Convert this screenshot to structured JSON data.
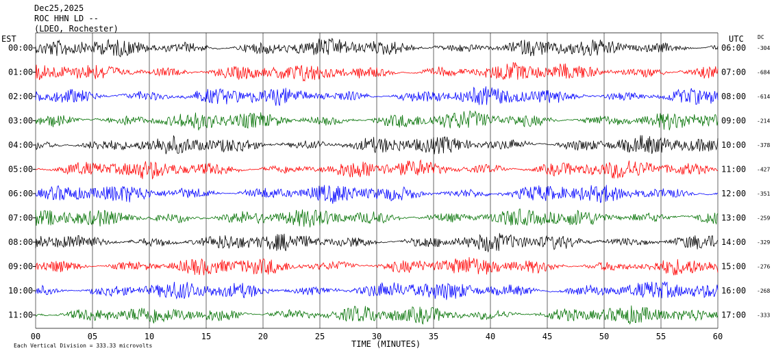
{
  "header": {
    "date": "Dec25,2025",
    "station": "ROC HHN LD --",
    "network": "(LDEO, Rochester)"
  },
  "chart_data": {
    "type": "line",
    "title": "",
    "left_axis_label": "EST",
    "right_axis_label": "UTC",
    "dc_label": "DC",
    "xlabel": "TIME (MINUTES)",
    "x_ticks": [
      "00",
      "05",
      "10",
      "15",
      "20",
      "25",
      "30",
      "35",
      "40",
      "45",
      "50",
      "55",
      "60"
    ],
    "xlim": [
      0,
      60
    ],
    "footer_note": "Each Vertical Division = 333.33 microvolts",
    "grid": "vertical lines every 5 minutes",
    "rows": [
      {
        "est": "00:00",
        "utc": "06:00",
        "dc": "-304",
        "color": "#000000"
      },
      {
        "est": "01:00",
        "utc": "07:00",
        "dc": "-684",
        "color": "#ff0000"
      },
      {
        "est": "02:00",
        "utc": "08:00",
        "dc": "-614",
        "color": "#0000ff"
      },
      {
        "est": "03:00",
        "utc": "09:00",
        "dc": "-214",
        "color": "#007000"
      },
      {
        "est": "04:00",
        "utc": "10:00",
        "dc": "-378",
        "color": "#000000"
      },
      {
        "est": "05:00",
        "utc": "11:00",
        "dc": "-427",
        "color": "#ff0000"
      },
      {
        "est": "06:00",
        "utc": "12:00",
        "dc": "-351",
        "color": "#0000ff"
      },
      {
        "est": "07:00",
        "utc": "13:00",
        "dc": "-259",
        "color": "#007000"
      },
      {
        "est": "08:00",
        "utc": "14:00",
        "dc": "-329",
        "color": "#000000"
      },
      {
        "est": "09:00",
        "utc": "15:00",
        "dc": "-276",
        "color": "#ff0000"
      },
      {
        "est": "10:00",
        "utc": "16:00",
        "dc": "-268",
        "color": "#0000ff"
      },
      {
        "est": "11:00",
        "utc": "17:00",
        "dc": "-333",
        "color": "#007000"
      }
    ]
  }
}
